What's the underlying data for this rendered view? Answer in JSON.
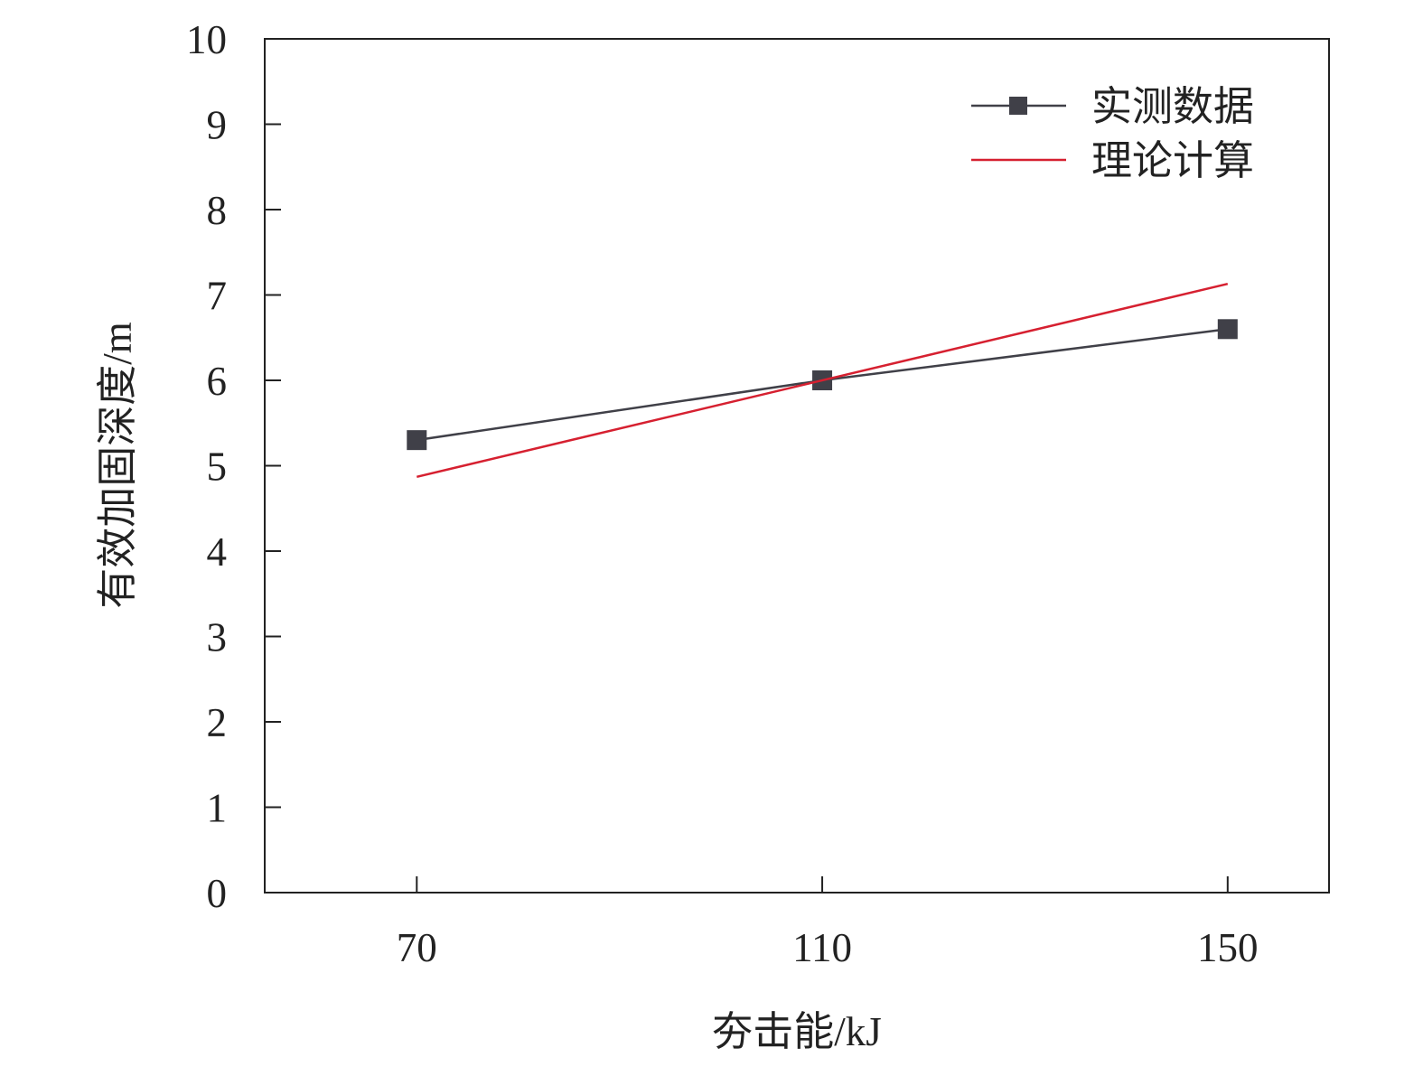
{
  "chart_data": {
    "type": "line",
    "xlabel": "夯击能/kJ",
    "ylabel": "有效加固深度/m",
    "xlim": [
      55,
      160
    ],
    "ylim": [
      0,
      10
    ],
    "x_ticks": [
      70,
      110,
      150
    ],
    "y_ticks": [
      0,
      1,
      2,
      3,
      4,
      5,
      6,
      7,
      8,
      9,
      10
    ],
    "grid": false,
    "legend_position": "top-right",
    "series": [
      {
        "name": "实测数据",
        "color": "#404048",
        "marker": "square",
        "x": [
          70,
          110,
          150
        ],
        "y": [
          5.3,
          6.0,
          6.6
        ]
      },
      {
        "name": "理论计算",
        "color": "#d62030",
        "marker": "none",
        "x": [
          70,
          150
        ],
        "y": [
          4.87,
          7.13
        ]
      }
    ]
  }
}
